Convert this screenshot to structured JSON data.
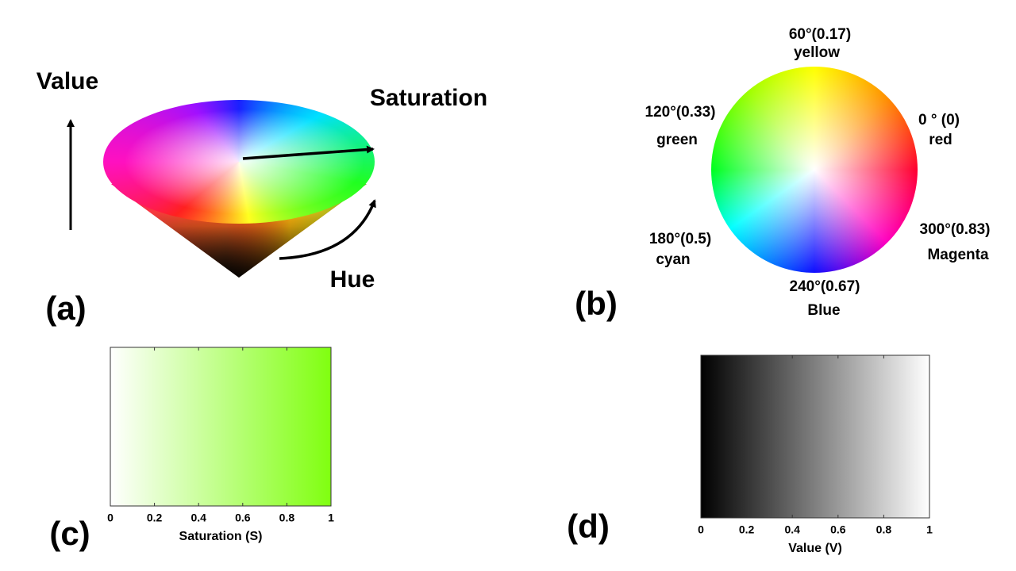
{
  "panel_a": {
    "label": "(a)",
    "value_label": "Value",
    "saturation_label": "Saturation",
    "hue_label": "Hue"
  },
  "panel_b": {
    "label": "(b)",
    "hues": [
      {
        "angle": "0 ° (0)",
        "name": "red"
      },
      {
        "angle": "60°(0.17)",
        "name": "yellow"
      },
      {
        "angle": "120°(0.33)",
        "name": "green"
      },
      {
        "angle": "180°(0.5)",
        "name": "cyan"
      },
      {
        "angle": "240°(0.67)",
        "name": "Blue"
      },
      {
        "angle": "300°(0.83)",
        "name": "Magenta"
      }
    ]
  },
  "panel_c": {
    "label": "(c)",
    "xlabel": "Saturation (S)",
    "xlim": [
      0,
      1
    ],
    "xticks": [
      0,
      0.2,
      0.4,
      0.6,
      0.8,
      1
    ],
    "colors": [
      "#ffffff",
      "#80ff10"
    ]
  },
  "panel_d": {
    "label": "(d)",
    "xlabel": "Value (V)",
    "xlim": [
      0,
      1
    ],
    "xticks": [
      0,
      0.2,
      0.4,
      0.6,
      0.8,
      1
    ],
    "colors": [
      "#000000",
      "#ffffff"
    ]
  }
}
